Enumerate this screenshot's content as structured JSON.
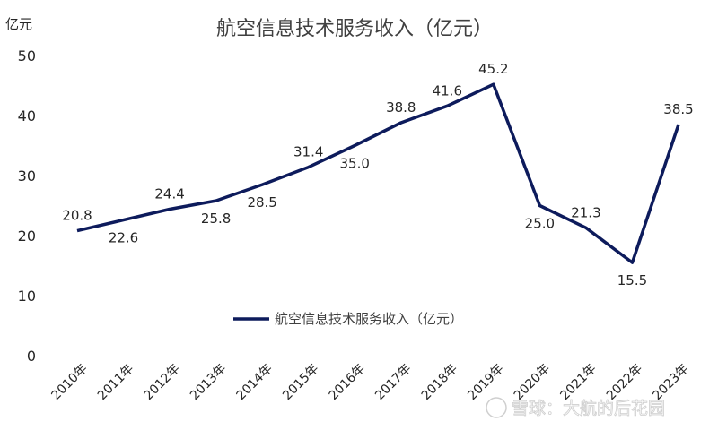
{
  "chart_data": {
    "type": "line",
    "title": "航空信息技术服务收入（亿元）",
    "ylabel": "亿元",
    "xlabel": "",
    "ylim": [
      0,
      50
    ],
    "yticks": [
      0,
      10,
      20,
      30,
      40,
      50
    ],
    "grid": false,
    "legend_position": "bottom-center",
    "categories": [
      "2010年",
      "2011年",
      "2012年",
      "2013年",
      "2014年",
      "2015年",
      "2016年",
      "2017年",
      "2018年",
      "2019年",
      "2020年",
      "2021年",
      "2022年",
      "2023年"
    ],
    "series": [
      {
        "name": "航空信息技术服务收入（亿元）",
        "values": [
          20.8,
          22.6,
          24.4,
          25.8,
          28.5,
          31.4,
          35.0,
          38.8,
          41.6,
          45.2,
          25.0,
          21.3,
          15.5,
          38.5
        ],
        "labels": [
          "20.8",
          "22.6",
          "24.4",
          "25.8",
          "28.5",
          "31.4",
          "35.0",
          "38.8",
          "41.6",
          "45.2",
          "25.0",
          "21.3",
          "15.5",
          "38.5"
        ],
        "color": "#0d1b5c"
      }
    ]
  },
  "watermark": {
    "text": "雪球：大航的后花园"
  }
}
